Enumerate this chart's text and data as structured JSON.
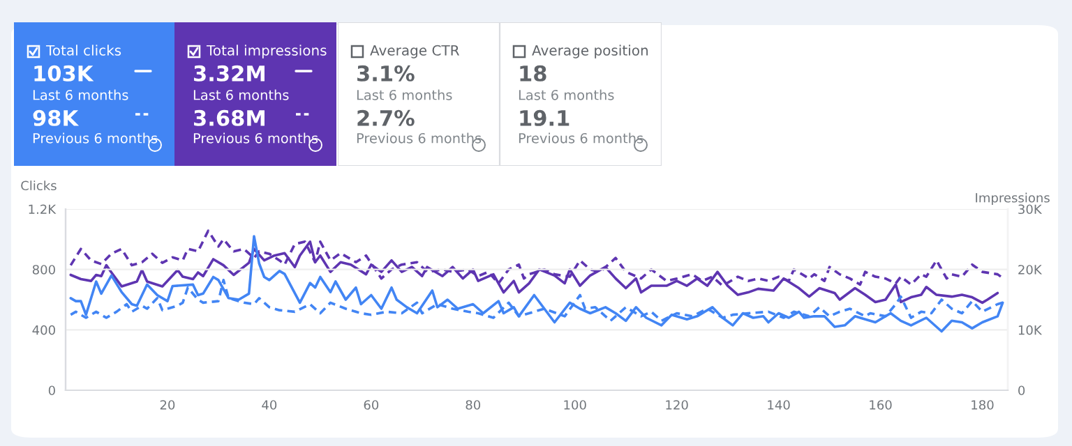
{
  "chart_data": [
    {
      "type": "other",
      "title": "Total clicks",
      "annotations": [
        "103K",
        "Last 6 months",
        "98K",
        "Previous 6 months"
      ]
    },
    {
      "type": "other",
      "title": "Total impressions",
      "annotations": [
        "3.32M",
        "Last 6 months",
        "3.68M",
        "Previous 6 months"
      ]
    },
    {
      "type": "other",
      "title": "Average CTR",
      "annotations": [
        "3.1%",
        "Last 6 months",
        "2.7%",
        "Previous 6 months"
      ]
    },
    {
      "type": "other",
      "title": "Average position",
      "annotations": [
        "18",
        "Last 6 months",
        "19.1",
        "Previous 6 months"
      ]
    },
    {
      "type": "line",
      "ylabel": "Clicks",
      "y2label": "Impressions",
      "grid": "y",
      "marker": "none",
      "xlim": [
        0,
        185
      ],
      "xticks": [
        20,
        40,
        60,
        80,
        100,
        120,
        140,
        160,
        180
      ],
      "ylim": [
        0,
        1200
      ],
      "yticks": [
        0,
        400,
        800,
        {
          "value": 1200,
          "label": "1.2K"
        }
      ],
      "y2lim": [
        0,
        30000
      ],
      "y2ticks": [
        0,
        {
          "value": 10000,
          "label": "10K"
        },
        {
          "value": 20000,
          "label": "20K"
        },
        {
          "value": 30000,
          "label": "30K"
        }
      ],
      "series": [
        {
          "color": "#4285f4",
          "line_style": "solid",
          "x": [
            1,
            2,
            3,
            4,
            6,
            7,
            9,
            11,
            13,
            14,
            16,
            18,
            20,
            21,
            25,
            26,
            27,
            29,
            30,
            32,
            34,
            36,
            37,
            38,
            39,
            40,
            42,
            43,
            46,
            48,
            49,
            50,
            52,
            53,
            55,
            57,
            58,
            60,
            62,
            64,
            65,
            67,
            69,
            72,
            73,
            75,
            77,
            80,
            82,
            85,
            86,
            88,
            89,
            92,
            94,
            96,
            99,
            101,
            103,
            106,
            108,
            110,
            112,
            114,
            117,
            119,
            122,
            124,
            127,
            129,
            131,
            133,
            135,
            137,
            138,
            140,
            142,
            144,
            145,
            147,
            149,
            151,
            153,
            155,
            156,
            159,
            162,
            164,
            166,
            169,
            172,
            174,
            176,
            178,
            180,
            183,
            184
          ],
          "values": [
            610,
            590,
            590,
            500,
            720,
            640,
            760,
            650,
            570,
            560,
            700,
            630,
            590,
            690,
            700,
            630,
            640,
            750,
            730,
            610,
            600,
            640,
            1020,
            840,
            750,
            730,
            790,
            770,
            580,
            710,
            680,
            750,
            650,
            720,
            600,
            680,
            570,
            630,
            540,
            680,
            600,
            550,
            510,
            660,
            550,
            600,
            540,
            570,
            510,
            590,
            510,
            550,
            490,
            630,
            540,
            450,
            580,
            540,
            510,
            550,
            510,
            460,
            550,
            480,
            430,
            500,
            470,
            490,
            550,
            480,
            430,
            510,
            480,
            490,
            450,
            510,
            480,
            520,
            480,
            490,
            490,
            420,
            430,
            490,
            480,
            450,
            510,
            460,
            430,
            480,
            390,
            460,
            450,
            410,
            450,
            490,
            580
          ]
        },
        {
          "color": "#4285f4",
          "line_style": "dashed",
          "x": [
            1,
            2,
            4,
            6,
            8,
            10,
            12,
            13,
            15,
            16,
            18,
            19,
            22,
            23,
            24,
            26,
            27,
            30,
            31,
            32,
            35,
            37,
            38,
            40,
            42,
            45,
            48,
            50,
            52,
            55,
            58,
            60,
            63,
            66,
            69,
            70,
            73,
            76,
            79,
            81,
            84,
            87,
            89,
            91,
            94,
            98,
            101,
            102,
            104,
            107,
            110,
            113,
            115,
            117,
            120,
            123,
            126,
            129,
            131,
            134,
            138,
            141,
            143,
            146,
            148,
            150,
            152,
            154,
            157,
            158,
            161,
            163,
            164,
            166,
            168,
            170,
            172,
            174,
            176,
            178,
            180,
            183,
            184
          ],
          "values": [
            500,
            520,
            480,
            520,
            480,
            520,
            570,
            520,
            560,
            540,
            610,
            530,
            560,
            580,
            680,
            600,
            580,
            590,
            730,
            610,
            580,
            570,
            610,
            550,
            530,
            520,
            570,
            510,
            580,
            540,
            510,
            500,
            520,
            510,
            580,
            510,
            570,
            540,
            520,
            510,
            480,
            580,
            490,
            510,
            540,
            490,
            630,
            540,
            550,
            460,
            550,
            490,
            520,
            460,
            510,
            490,
            540,
            480,
            500,
            510,
            520,
            480,
            520,
            490,
            550,
            490,
            520,
            540,
            490,
            510,
            490,
            570,
            620,
            480,
            520,
            510,
            600,
            540,
            510,
            590,
            520,
            570,
            580
          ]
        },
        {
          "color": "#5e35b1",
          "line_style": "solid",
          "axis": "y2",
          "x": [
            1,
            3,
            5,
            6,
            7,
            8,
            9,
            11,
            14,
            15,
            16,
            19,
            22,
            23,
            25,
            26,
            27,
            29,
            31,
            33,
            36,
            37,
            39,
            41,
            43,
            45,
            46,
            48,
            49,
            50,
            52,
            54,
            56,
            59,
            60,
            62,
            64,
            66,
            68,
            70,
            71,
            74,
            76,
            78,
            80,
            81,
            84,
            86,
            88,
            89,
            91,
            93,
            96,
            98,
            99,
            101,
            103,
            106,
            108,
            110,
            112,
            113,
            115,
            118,
            120,
            122,
            124,
            126,
            128,
            130,
            132,
            134,
            136,
            139,
            141,
            144,
            146,
            148,
            151,
            152,
            155,
            157,
            159,
            161,
            163,
            164,
            166,
            168,
            169,
            171,
            174,
            176,
            178,
            180,
            181,
            183
          ],
          "values": [
            19100,
            18400,
            18100,
            19100,
            18900,
            20700,
            19500,
            17200,
            18000,
            19900,
            18000,
            17200,
            19900,
            18800,
            18400,
            19500,
            18900,
            21700,
            20700,
            19100,
            21100,
            23400,
            21500,
            22300,
            22700,
            20400,
            22300,
            24600,
            21200,
            22300,
            19600,
            21200,
            20800,
            19200,
            20800,
            19600,
            21500,
            19600,
            20400,
            18900,
            20400,
            18900,
            20400,
            18500,
            20000,
            18100,
            19200,
            16200,
            18100,
            16200,
            17700,
            20000,
            19000,
            17700,
            20000,
            17300,
            19000,
            20400,
            18500,
            16900,
            18500,
            16200,
            17300,
            17300,
            18100,
            17300,
            18500,
            17300,
            19600,
            17300,
            15800,
            16200,
            16800,
            16500,
            18500,
            16900,
            15500,
            16900,
            16100,
            15000,
            16900,
            15800,
            14600,
            15000,
            17500,
            14600,
            15400,
            15800,
            17100,
            15800,
            15500,
            15800,
            15400,
            14500,
            15000,
            16100
          ]
        },
        {
          "color": "#5e35b1",
          "line_style": "dashed",
          "axis": "y2",
          "x": [
            1,
            3,
            5,
            7,
            9,
            11,
            13,
            15,
            17,
            19,
            21,
            23,
            24,
            26,
            28,
            30,
            31,
            33,
            35,
            37,
            38,
            40,
            42,
            43,
            45,
            47,
            49,
            50,
            52,
            54,
            57,
            59,
            62,
            64,
            66,
            69,
            71,
            74,
            76,
            79,
            81,
            83,
            85,
            87,
            89,
            90,
            91,
            94,
            96,
            99,
            101,
            103,
            105,
            108,
            110,
            113,
            115,
            118,
            120,
            123,
            125,
            127,
            129,
            132,
            134,
            136,
            138,
            140,
            142,
            143,
            146,
            147,
            149,
            150,
            152,
            154,
            156,
            157,
            159,
            161,
            163,
            164,
            166,
            168,
            169,
            171,
            173,
            174,
            176,
            178,
            180,
            183,
            184
          ],
          "values": [
            20700,
            23400,
            21500,
            20900,
            22600,
            23400,
            20700,
            21200,
            22600,
            21100,
            22000,
            21500,
            23400,
            23000,
            26400,
            23800,
            25000,
            23000,
            23400,
            21900,
            23000,
            22600,
            21500,
            20800,
            24200,
            24600,
            21200,
            24600,
            21500,
            22700,
            21200,
            22300,
            18500,
            20000,
            20800,
            21200,
            19600,
            20000,
            19600,
            20000,
            18900,
            19600,
            17700,
            20000,
            20800,
            18500,
            19200,
            20000,
            19200,
            18800,
            21500,
            20000,
            19600,
            21900,
            19600,
            18500,
            20000,
            18100,
            18500,
            19200,
            18100,
            18800,
            17300,
            18800,
            18100,
            18500,
            18100,
            18800,
            18100,
            20000,
            18500,
            19200,
            18100,
            20400,
            19200,
            18500,
            17500,
            19600,
            18800,
            18500,
            17700,
            18800,
            17500,
            19200,
            18800,
            21500,
            18500,
            19200,
            18800,
            20800,
            19600,
            19200,
            18600
          ]
        }
      ]
    }
  ]
}
